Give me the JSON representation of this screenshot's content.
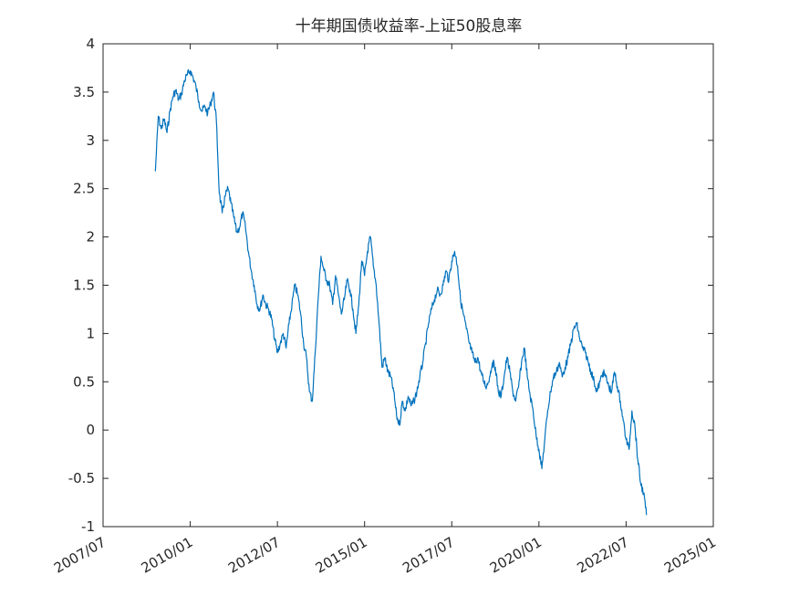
{
  "chart_data": {
    "type": "line",
    "title": "十年期国债收益率-上证50股息率",
    "xlabel": "",
    "ylabel": "",
    "ylim": [
      -1,
      4
    ],
    "yticks": [
      "-1",
      "-0.5",
      "0",
      "0.5",
      "1",
      "1.5",
      "2",
      "2.5",
      "3",
      "3.5",
      "4"
    ],
    "xlim": [
      "2007/07",
      "2025/01"
    ],
    "xticks": [
      "2007/07",
      "2010/01",
      "2012/07",
      "2015/01",
      "2017/07",
      "2020/01",
      "2022/07",
      "2025/01"
    ],
    "grid": false,
    "series": [
      {
        "color": "#0072BD",
        "points": [
          [
            "2009/01",
            2.68
          ],
          [
            "2009/02",
            3.25
          ],
          [
            "2009/03",
            3.12
          ],
          [
            "2009/04",
            3.22
          ],
          [
            "2009/05",
            3.08
          ],
          [
            "2009/06",
            3.3
          ],
          [
            "2009/07",
            3.45
          ],
          [
            "2009/08",
            3.52
          ],
          [
            "2009/09",
            3.42
          ],
          [
            "2009/10",
            3.48
          ],
          [
            "2009/11",
            3.62
          ],
          [
            "2009/12",
            3.68
          ],
          [
            "2010/01",
            3.72
          ],
          [
            "2010/02",
            3.65
          ],
          [
            "2010/03",
            3.55
          ],
          [
            "2010/04",
            3.4
          ],
          [
            "2010/05",
            3.3
          ],
          [
            "2010/06",
            3.35
          ],
          [
            "2010/07",
            3.28
          ],
          [
            "2010/08",
            3.38
          ],
          [
            "2010/09",
            3.5
          ],
          [
            "2010/10",
            3.2
          ],
          [
            "2010/11",
            2.45
          ],
          [
            "2010/12",
            2.25
          ],
          [
            "2011/01",
            2.42
          ],
          [
            "2011/02",
            2.5
          ],
          [
            "2011/03",
            2.35
          ],
          [
            "2011/04",
            2.2
          ],
          [
            "2011/05",
            2.05
          ],
          [
            "2011/06",
            2.1
          ],
          [
            "2011/07",
            2.25
          ],
          [
            "2011/08",
            2.1
          ],
          [
            "2011/09",
            1.85
          ],
          [
            "2011/10",
            1.65
          ],
          [
            "2011/11",
            1.5
          ],
          [
            "2011/12",
            1.3
          ],
          [
            "2012/01",
            1.25
          ],
          [
            "2012/02",
            1.4
          ],
          [
            "2012/03",
            1.3
          ],
          [
            "2012/04",
            1.25
          ],
          [
            "2012/05",
            1.15
          ],
          [
            "2012/06",
            0.95
          ],
          [
            "2012/07",
            0.8
          ],
          [
            "2012/08",
            0.9
          ],
          [
            "2012/09",
            1.0
          ],
          [
            "2012/10",
            0.85
          ],
          [
            "2012/11",
            1.1
          ],
          [
            "2012/12",
            1.3
          ],
          [
            "2013/01",
            1.5
          ],
          [
            "2013/02",
            1.4
          ],
          [
            "2013/03",
            1.2
          ],
          [
            "2013/04",
            0.9
          ],
          [
            "2013/05",
            0.75
          ],
          [
            "2013/06",
            0.4
          ],
          [
            "2013/07",
            0.3
          ],
          [
            "2013/08",
            0.8
          ],
          [
            "2013/09",
            1.35
          ],
          [
            "2013/10",
            1.8
          ],
          [
            "2013/11",
            1.65
          ],
          [
            "2013/12",
            1.55
          ],
          [
            "2014/01",
            1.5
          ],
          [
            "2014/02",
            1.3
          ],
          [
            "2014/03",
            1.6
          ],
          [
            "2014/04",
            1.4
          ],
          [
            "2014/05",
            1.2
          ],
          [
            "2014/06",
            1.35
          ],
          [
            "2014/07",
            1.55
          ],
          [
            "2014/08",
            1.45
          ],
          [
            "2014/09",
            1.25
          ],
          [
            "2014/10",
            1.0
          ],
          [
            "2014/11",
            1.3
          ],
          [
            "2014/12",
            1.75
          ],
          [
            "2015/01",
            1.6
          ],
          [
            "2015/02",
            1.85
          ],
          [
            "2015/03",
            2.0
          ],
          [
            "2015/04",
            1.7
          ],
          [
            "2015/05",
            1.5
          ],
          [
            "2015/06",
            1.1
          ],
          [
            "2015/07",
            0.65
          ],
          [
            "2015/08",
            0.75
          ],
          [
            "2015/09",
            0.6
          ],
          [
            "2015/10",
            0.55
          ],
          [
            "2015/11",
            0.4
          ],
          [
            "2015/12",
            0.15
          ],
          [
            "2016/01",
            0.05
          ],
          [
            "2016/02",
            0.3
          ],
          [
            "2016/03",
            0.2
          ],
          [
            "2016/04",
            0.35
          ],
          [
            "2016/05",
            0.25
          ],
          [
            "2016/06",
            0.3
          ],
          [
            "2016/07",
            0.4
          ],
          [
            "2016/08",
            0.55
          ],
          [
            "2016/09",
            0.7
          ],
          [
            "2016/10",
            0.9
          ],
          [
            "2016/11",
            1.1
          ],
          [
            "2016/12",
            1.25
          ],
          [
            "2017/01",
            1.35
          ],
          [
            "2017/02",
            1.45
          ],
          [
            "2017/03",
            1.4
          ],
          [
            "2017/04",
            1.5
          ],
          [
            "2017/05",
            1.65
          ],
          [
            "2017/06",
            1.55
          ],
          [
            "2017/07",
            1.75
          ],
          [
            "2017/08",
            1.85
          ],
          [
            "2017/09",
            1.7
          ],
          [
            "2017/10",
            1.35
          ],
          [
            "2017/11",
            1.2
          ],
          [
            "2017/12",
            1.05
          ],
          [
            "2018/01",
            0.9
          ],
          [
            "2018/02",
            0.8
          ],
          [
            "2018/03",
            0.7
          ],
          [
            "2018/04",
            0.75
          ],
          [
            "2018/05",
            0.6
          ],
          [
            "2018/06",
            0.5
          ],
          [
            "2018/07",
            0.45
          ],
          [
            "2018/08",
            0.55
          ],
          [
            "2018/09",
            0.7
          ],
          [
            "2018/10",
            0.65
          ],
          [
            "2018/11",
            0.4
          ],
          [
            "2018/12",
            0.35
          ],
          [
            "2019/01",
            0.55
          ],
          [
            "2019/02",
            0.75
          ],
          [
            "2019/03",
            0.6
          ],
          [
            "2019/04",
            0.4
          ],
          [
            "2019/05",
            0.3
          ],
          [
            "2019/06",
            0.45
          ],
          [
            "2019/07",
            0.7
          ],
          [
            "2019/08",
            0.85
          ],
          [
            "2019/09",
            0.55
          ],
          [
            "2019/10",
            0.35
          ],
          [
            "2019/11",
            0.2
          ],
          [
            "2019/12",
            -0.05
          ],
          [
            "2020/01",
            -0.2
          ],
          [
            "2020/02",
            -0.4
          ],
          [
            "2020/03",
            -0.1
          ],
          [
            "2020/04",
            0.2
          ],
          [
            "2020/05",
            0.4
          ],
          [
            "2020/06",
            0.55
          ],
          [
            "2020/07",
            0.6
          ],
          [
            "2020/08",
            0.7
          ],
          [
            "2020/09",
            0.55
          ],
          [
            "2020/10",
            0.65
          ],
          [
            "2020/11",
            0.75
          ],
          [
            "2020/12",
            0.9
          ],
          [
            "2021/01",
            1.05
          ],
          [
            "2021/02",
            1.1
          ],
          [
            "2021/03",
            0.95
          ],
          [
            "2021/04",
            0.85
          ],
          [
            "2021/05",
            0.8
          ],
          [
            "2021/06",
            0.7
          ],
          [
            "2021/07",
            0.6
          ],
          [
            "2021/08",
            0.5
          ],
          [
            "2021/09",
            0.4
          ],
          [
            "2021/10",
            0.5
          ],
          [
            "2021/11",
            0.6
          ],
          [
            "2021/12",
            0.55
          ],
          [
            "2022/01",
            0.45
          ],
          [
            "2022/02",
            0.4
          ],
          [
            "2022/03",
            0.6
          ],
          [
            "2022/04",
            0.45
          ],
          [
            "2022/05",
            0.3
          ],
          [
            "2022/06",
            0.1
          ],
          [
            "2022/07",
            -0.1
          ],
          [
            "2022/08",
            -0.2
          ],
          [
            "2022/09",
            0.2
          ],
          [
            "2022/10",
            0.05
          ],
          [
            "2022/11",
            -0.3
          ],
          [
            "2022/12",
            -0.55
          ],
          [
            "2023/01",
            -0.65
          ],
          [
            "2023/02",
            -0.88
          ]
        ]
      }
    ]
  }
}
